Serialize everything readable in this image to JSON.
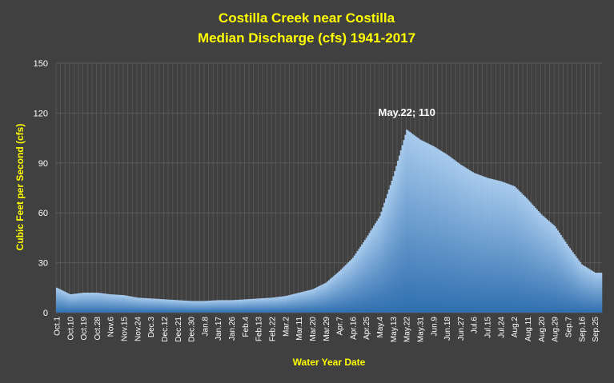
{
  "chart_data": {
    "type": "area",
    "title": "Costilla Creek near Costilla",
    "subtitle": "Median Discharge (cfs) 1941-2017",
    "xlabel": "Water Year Date",
    "ylabel": "Cubic Feet per Second (cfs)",
    "ylim": [
      0,
      150
    ],
    "yticks": [
      "0",
      "30",
      "60",
      "90",
      "120",
      "150"
    ],
    "grid": true,
    "x_tick_labels": [
      "Oct.1",
      "Oct.10",
      "Oct.19",
      "Oct.28",
      "Nov.6",
      "Nov.15",
      "Nov.24",
      "Dec.3",
      "Dec.12",
      "Dec.21",
      "Dec.30",
      "Jan.8",
      "Jan.17",
      "Jan.26",
      "Feb.4",
      "Feb.13",
      "Feb.22",
      "Mar.2",
      "Mar.11",
      "Mar.20",
      "Mar.29",
      "Apr.7",
      "Apr.16",
      "Apr.25",
      "May.4",
      "May.13",
      "May.22",
      "May.31",
      "Jun.9",
      "Jun.18",
      "Jun.27",
      "Jul.6",
      "Jul.15",
      "Jul.24",
      "Aug.2",
      "Aug.11",
      "Aug.20",
      "Aug.29",
      "Sep.7",
      "Sep.16",
      "Sep.25"
    ],
    "x_days_total": 365,
    "anchors": [
      {
        "date": "Oct.1",
        "value": 15
      },
      {
        "date": "Oct.10",
        "value": 11
      },
      {
        "date": "Oct.19",
        "value": 12
      },
      {
        "date": "Oct.28",
        "value": 12
      },
      {
        "date": "Nov.6",
        "value": 11
      },
      {
        "date": "Nov.15",
        "value": 10.5
      },
      {
        "date": "Nov.24",
        "value": 9
      },
      {
        "date": "Dec.3",
        "value": 8.5
      },
      {
        "date": "Dec.12",
        "value": 8
      },
      {
        "date": "Dec.21",
        "value": 7.5
      },
      {
        "date": "Dec.30",
        "value": 7
      },
      {
        "date": "Jan.8",
        "value": 7
      },
      {
        "date": "Jan.17",
        "value": 7.5
      },
      {
        "date": "Jan.26",
        "value": 7.5
      },
      {
        "date": "Feb.4",
        "value": 8
      },
      {
        "date": "Feb.13",
        "value": 8.5
      },
      {
        "date": "Feb.22",
        "value": 9
      },
      {
        "date": "Mar.2",
        "value": 10
      },
      {
        "date": "Mar.11",
        "value": 12
      },
      {
        "date": "Mar.20",
        "value": 14
      },
      {
        "date": "Mar.29",
        "value": 18
      },
      {
        "date": "Apr.7",
        "value": 25
      },
      {
        "date": "Apr.16",
        "value": 33
      },
      {
        "date": "Apr.25",
        "value": 45
      },
      {
        "date": "May.4",
        "value": 58
      },
      {
        "date": "May.13",
        "value": 82
      },
      {
        "date": "May.22",
        "value": 110
      },
      {
        "date": "May.31",
        "value": 104
      },
      {
        "date": "Jun.9",
        "value": 100
      },
      {
        "date": "Jun.18",
        "value": 95
      },
      {
        "date": "Jun.27",
        "value": 89
      },
      {
        "date": "Jul.6",
        "value": 84
      },
      {
        "date": "Jul.15",
        "value": 81
      },
      {
        "date": "Jul.24",
        "value": 79
      },
      {
        "date": "Aug.2",
        "value": 76
      },
      {
        "date": "Aug.11",
        "value": 68
      },
      {
        "date": "Aug.20",
        "value": 59
      },
      {
        "date": "Aug.29",
        "value": 52
      },
      {
        "date": "Sep.7",
        "value": 40
      },
      {
        "date": "Sep.16",
        "value": 29
      },
      {
        "date": "Sep.25",
        "value": 24
      }
    ],
    "annotation": {
      "date": "May.22",
      "value": 110,
      "text": "May.22; 110"
    },
    "colors": {
      "background": "#404040",
      "plot_background": "#404040",
      "grid": "#5a5a5a",
      "area_top": "#a8cbed",
      "area_bottom": "#2f6fb0",
      "title": "#ffff00",
      "tick_text": "#ffffff"
    }
  }
}
